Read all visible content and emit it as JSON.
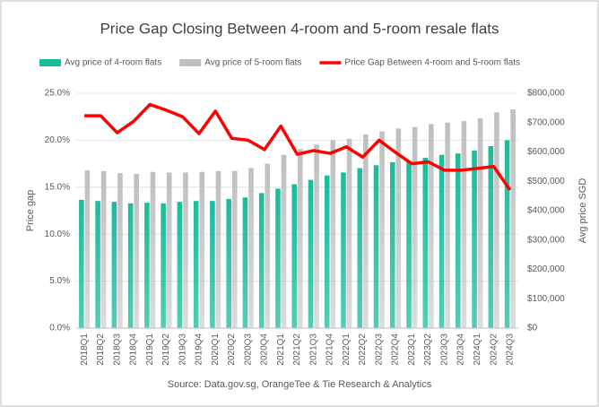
{
  "chart_data": {
    "type": "bar-line",
    "title": "Price Gap Closing Between 4-room and 5-room resale flats",
    "y_label": "Price gap",
    "y2_label": "Avg price SGD",
    "source": "Source: Data.gov.sg, OrangeTee & Tie Research & Analytics",
    "categories": [
      "2018Q1",
      "2018Q2",
      "2018Q3",
      "2018Q4",
      "2019Q1",
      "2019Q2",
      "2019Q3",
      "2019Q4",
      "2020Q1",
      "2020Q2",
      "2020Q3",
      "2020Q4",
      "2021Q1",
      "2021Q2",
      "2021Q3",
      "2021Q4",
      "2022Q1",
      "2022Q2",
      "2022Q3",
      "2022Q4",
      "2023Q1",
      "2023Q2",
      "2023Q3",
      "2023Q4",
      "2024Q1",
      "2024Q2",
      "2024Q3"
    ],
    "series": [
      {
        "name": "Avg price of 4-room flats",
        "type": "bar",
        "axis": "y2",
        "color": "#1abc9c",
        "values": [
          437000,
          433000,
          430000,
          425000,
          427000,
          425000,
          430000,
          433000,
          433000,
          440000,
          445000,
          460000,
          475000,
          490000,
          505000,
          520000,
          530000,
          545000,
          555000,
          565000,
          570000,
          580000,
          590000,
          595000,
          605000,
          620000,
          640000
        ]
      },
      {
        "name": "Avg price of 5-room flats",
        "type": "bar",
        "axis": "y2",
        "color": "#bfbfbf",
        "values": [
          537000,
          535000,
          528000,
          525000,
          532000,
          530000,
          530000,
          532000,
          535000,
          535000,
          545000,
          560000,
          590000,
          610000,
          625000,
          640000,
          645000,
          660000,
          670000,
          680000,
          685000,
          695000,
          700000,
          705000,
          715000,
          735000,
          745000
        ]
      },
      {
        "name": "Price Gap Between 4-room and 5-room flats",
        "type": "line",
        "axis": "y",
        "color": "#ff0000",
        "values": [
          22.6,
          22.6,
          20.8,
          22.0,
          23.8,
          23.2,
          22.5,
          20.7,
          23.1,
          20.2,
          20.0,
          19.0,
          21.5,
          18.5,
          18.9,
          18.6,
          19.3,
          18.2,
          20.0,
          18.7,
          17.5,
          17.7,
          16.8,
          16.8,
          17.0,
          17.2,
          14.7
        ]
      }
    ],
    "ylim": [
      0,
      25
    ],
    "yticks": [
      {
        "value": 0,
        "label": "0.0%"
      },
      {
        "value": 5,
        "label": "5.0%"
      },
      {
        "value": 10,
        "label": "10.0%"
      },
      {
        "value": 15,
        "label": "15.0%"
      },
      {
        "value": 20,
        "label": "20.0%"
      },
      {
        "value": 25,
        "label": "25.0%"
      }
    ],
    "y2lim": [
      0,
      800000
    ],
    "y2ticks": [
      {
        "value": 0,
        "label": "$0"
      },
      {
        "value": 100000,
        "label": "$100,000"
      },
      {
        "value": 200000,
        "label": "$200,000"
      },
      {
        "value": 300000,
        "label": "$300,000"
      },
      {
        "value": 400000,
        "label": "$400,000"
      },
      {
        "value": 500000,
        "label": "$500,000"
      },
      {
        "value": 600000,
        "label": "$600,000"
      },
      {
        "value": 700000,
        "label": "$700,000"
      },
      {
        "value": 800000,
        "label": "$800,000"
      }
    ],
    "grid": true
  }
}
